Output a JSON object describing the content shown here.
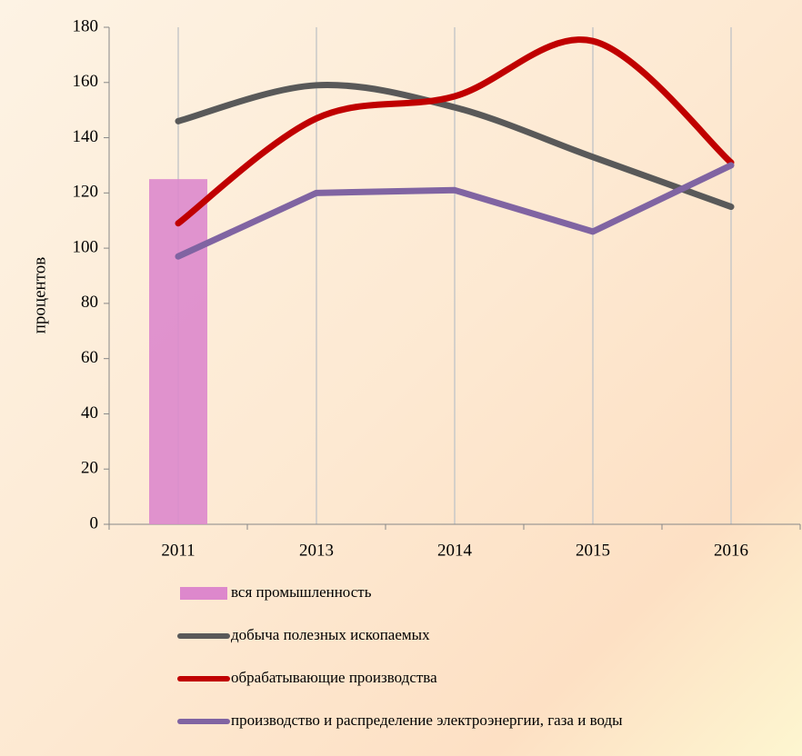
{
  "chart_data": {
    "type": "line",
    "ylabel": "процентов",
    "categories": [
      "2011",
      "2013",
      "2014",
      "2015",
      "2016"
    ],
    "ylim": [
      0,
      180
    ],
    "yticks": [
      0,
      20,
      40,
      60,
      80,
      100,
      120,
      140,
      160,
      180
    ],
    "grid": true,
    "legend": "bottom",
    "series": [
      {
        "name": "вся промышленность",
        "type": "bar",
        "color": "#dd88cc",
        "values": [
          125,
          null,
          null,
          null,
          null
        ]
      },
      {
        "name": "добыча полезных ископаемых",
        "color": "#595959",
        "smooth": true,
        "values": [
          146,
          159,
          151,
          133,
          115
        ]
      },
      {
        "name": "обрабатывающие производства",
        "color": "#c00000",
        "smooth": true,
        "values": [
          109,
          147,
          155,
          175,
          131
        ]
      },
      {
        "name": "производство и распределение электроэнергии, газа и воды",
        "color": "#8064a2",
        "smooth": false,
        "values": [
          97,
          120,
          121,
          106,
          130
        ]
      }
    ]
  }
}
